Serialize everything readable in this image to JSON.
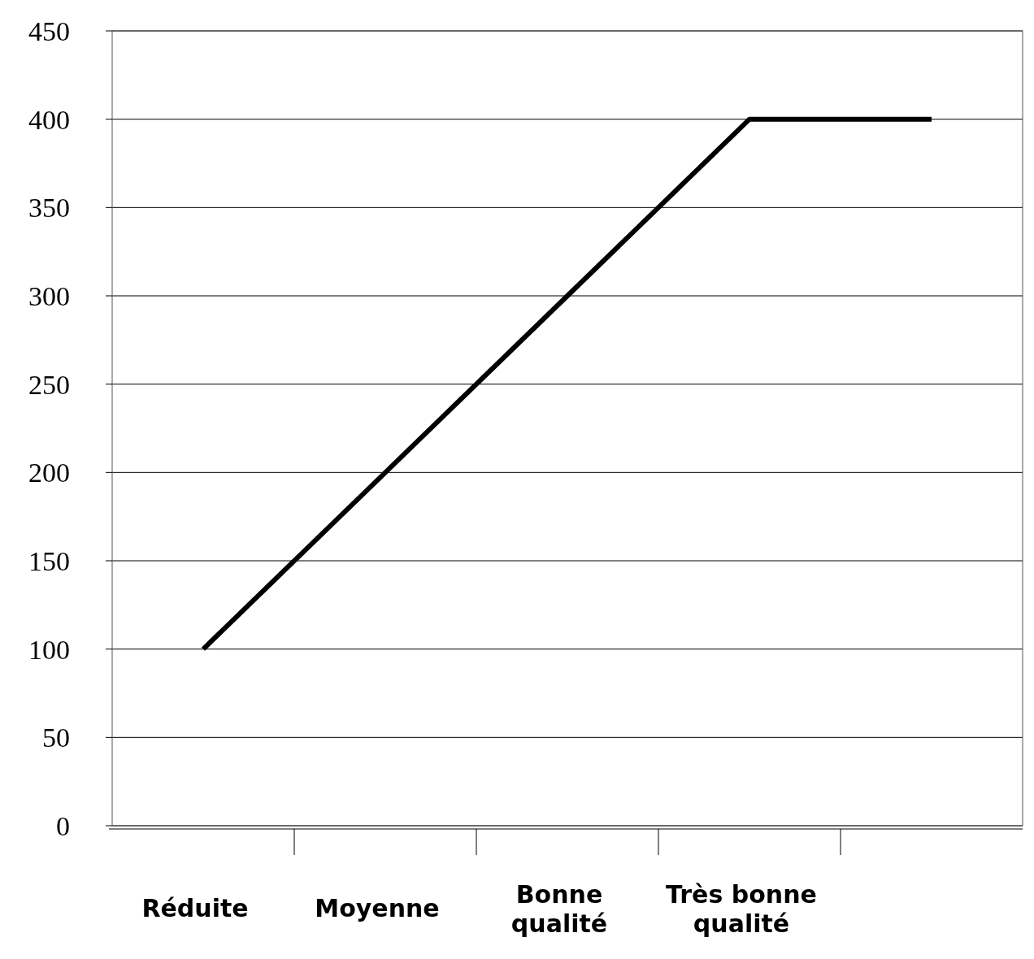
{
  "chart_data": {
    "type": "line",
    "categories": [
      "Réduite",
      "Moyenne",
      "Bonne qualité",
      "Très bonne qualité",
      null
    ],
    "series": [
      {
        "color": "#000000",
        "values": [
          100,
          200,
          300,
          400,
          400
        ]
      }
    ],
    "ylim": [
      0,
      450
    ],
    "yticks": [
      0,
      50,
      100,
      150,
      200,
      250,
      300,
      350,
      400,
      450
    ],
    "grid": "y",
    "marker": "none",
    "line_style": "solid"
  }
}
